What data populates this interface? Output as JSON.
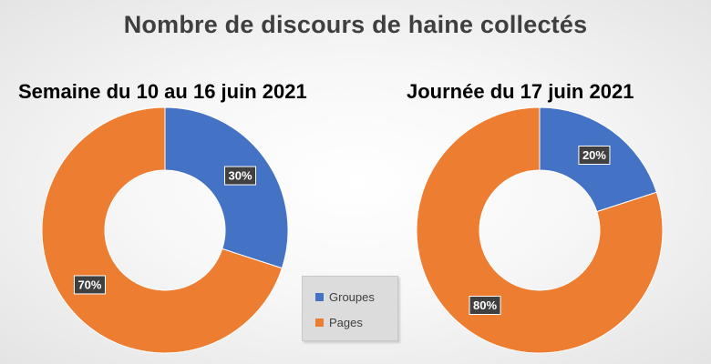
{
  "title": "Nombre de discours de haine collectés",
  "colors": {
    "groupes": "#4472C4",
    "pages": "#ED7D31",
    "label_bg": "#404040"
  },
  "legend": {
    "position": "bottom-center",
    "items": [
      {
        "label": "Groupes",
        "color": "#4472C4"
      },
      {
        "label": "Pages",
        "color": "#ED7D31"
      }
    ]
  },
  "chart_data": [
    {
      "type": "pie",
      "style": "donut",
      "title": "Semaine du 10 au 16 juin 2021",
      "categories": [
        "Groupes",
        "Pages"
      ],
      "values": [
        30,
        70
      ],
      "labels": [
        "30%",
        "70%"
      ]
    },
    {
      "type": "pie",
      "style": "donut",
      "title": "Journée du 17 juin 2021",
      "categories": [
        "Groupes",
        "Pages"
      ],
      "values": [
        20,
        80
      ],
      "labels": [
        "20%",
        "80%"
      ]
    }
  ]
}
